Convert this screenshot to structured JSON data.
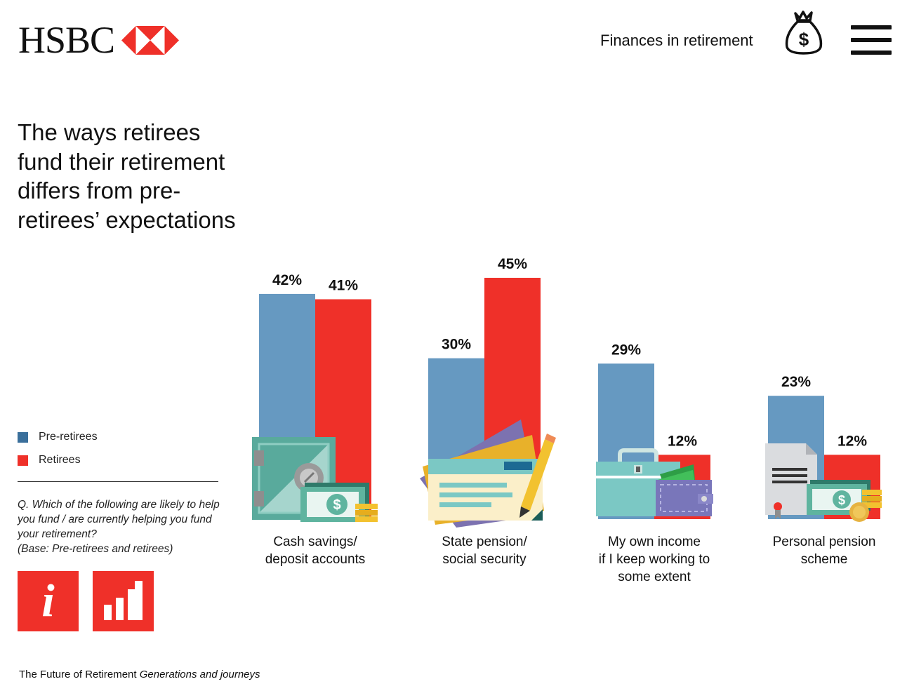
{
  "header": {
    "logo_text": "HSBC",
    "topic": "Finances in retirement",
    "icons": [
      "hexagon-logo-icon",
      "money-bag-icon",
      "hamburger-menu-icon"
    ]
  },
  "sidebar": {
    "question": "Q. Which of the following are likely to help you fund / are currently helping you fund your retirement?",
    "base": "(Base: Pre-retirees and retirees)",
    "tiles": [
      "info-icon",
      "bar-chart-icon"
    ]
  },
  "footer": {
    "title": "The Future of Retirement",
    "subtitle": "Generations and journeys"
  },
  "colors": {
    "pre_retirees": "#6699c1",
    "retirees": "#ef3029",
    "legend_pre_retirees": "#3a6f9b",
    "brand_red": "#ef3029"
  },
  "chart_data": {
    "type": "bar",
    "title": "The ways retirees fund their retirement differs from pre-retirees’ expectations",
    "categories": [
      "Cash savings/ deposit accounts",
      "State pension/ social security",
      "My own income if I keep working to some extent",
      "Personal pension scheme"
    ],
    "category_lines": [
      [
        "Cash savings/",
        "deposit accounts"
      ],
      [
        "State pension/",
        "social security"
      ],
      [
        "My own income",
        "if I keep working to",
        "some extent"
      ],
      [
        "Personal pension",
        "scheme"
      ]
    ],
    "series": [
      {
        "name": "Pre-retirees",
        "values": [
          42,
          30,
          29,
          23
        ],
        "labels": [
          "42%",
          "30%",
          "29%",
          "23%"
        ]
      },
      {
        "name": "Retirees",
        "values": [
          41,
          45,
          12,
          12
        ],
        "labels": [
          "41%",
          "45%",
          "12%",
          "12%"
        ]
      }
    ],
    "unit": "%",
    "ylim": [
      0,
      45
    ],
    "grid": false,
    "legend": "left",
    "icons": [
      "safe-with-cash-icon",
      "documents-with-pencil-icon",
      "briefcase-and-wallet-icon",
      "certificate-with-cash-icon"
    ]
  }
}
